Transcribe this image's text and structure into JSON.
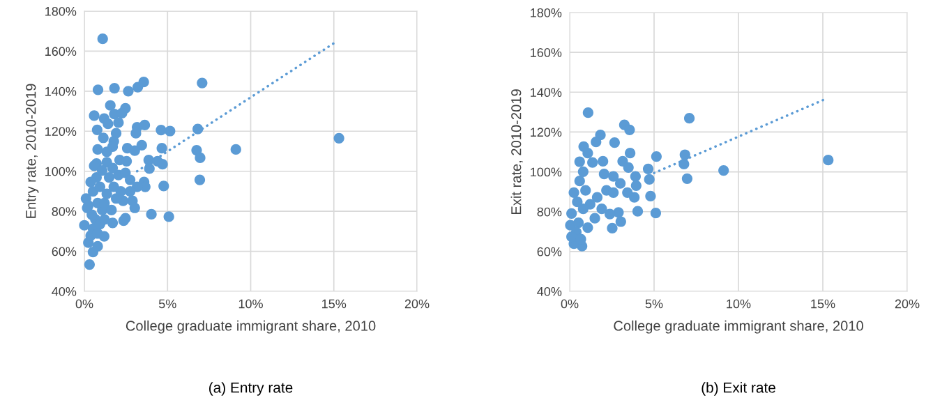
{
  "chart_data": [
    {
      "type": "scatter",
      "title": "(a) Entry rate",
      "xlabel": "College graduate immigrant share, 2010",
      "ylabel": "Entry rate, 2010-2019",
      "grid": true,
      "legend": false,
      "marker": "circle",
      "xlim": [
        0,
        20
      ],
      "ylim": [
        40,
        180
      ],
      "xticks": [
        {
          "value": 0,
          "label": "0%"
        },
        {
          "value": 5,
          "label": "5%"
        },
        {
          "value": 10,
          "label": "10%"
        },
        {
          "value": 15,
          "label": "15%"
        },
        {
          "value": 20,
          "label": "20%"
        }
      ],
      "yticks": [
        {
          "value": 40,
          "label": "40%"
        },
        {
          "value": 60,
          "label": "60%"
        },
        {
          "value": 80,
          "label": "80%"
        },
        {
          "value": 100,
          "label": "100%"
        },
        {
          "value": 120,
          "label": "120%"
        },
        {
          "value": 140,
          "label": "140%"
        },
        {
          "value": 160,
          "label": "160%"
        },
        {
          "value": 180,
          "label": "180%"
        }
      ],
      "series": [
        {
          "color": "#5b9bd5",
          "x": [
            1.1,
            7.08,
            0.82,
            1.81,
            2.64,
            3.21,
            3.57,
            1.56,
            2.47,
            0.59,
            1.19,
            1.8,
            2.26,
            1.42,
            2.05,
            0.77,
            3.17,
            3.63,
            3.1,
            4.61,
            5.15,
            6.82,
            15.31,
            1.91,
            1.14,
            1.77,
            1.7,
            0.8,
            1.35,
            2.58,
            3.45,
            3.03,
            4.66,
            6.75,
            9.11,
            6.96,
            3.87,
            4.4,
            4.7,
            3.91,
            2.12,
            2.54,
            0.73,
            1.35,
            6.94,
            4.77,
            3.59,
            3.66,
            2.89,
            3.03,
            2.33,
            4.03,
            5.08,
            2.47,
            2.36,
            1.7,
            1.19,
            0.8,
            0.52,
            0.31,
            0.1,
            0.17,
            0.0,
            0.24,
            0.38,
            0.52,
            0.66,
            0.45,
            0.94,
            1.08,
            0.8,
            0.52,
            0.94,
            1.35,
            1.77,
            1.49,
            2.05,
            2.47,
            2.75,
            1.91,
            1.63,
            1.21,
            0.73,
            0.59,
            1.07,
            1.7,
            0.38,
            0.24,
            1.21,
            0.8,
            2.19,
            3.17,
            2.75
          ],
          "values": [
            166.2,
            144.1,
            140.7,
            141.5,
            140.0,
            142.0,
            144.6,
            132.9,
            131.5,
            127.8,
            126.3,
            128.6,
            129.0,
            123.7,
            124.3,
            120.7,
            122.0,
            123.1,
            119.0,
            120.6,
            120.1,
            121.1,
            116.5,
            119.0,
            116.7,
            115.0,
            112.3,
            110.9,
            109.7,
            111.5,
            113.0,
            110.3,
            111.5,
            110.5,
            110.9,
            106.7,
            105.6,
            105.0,
            103.5,
            101.3,
            105.6,
            105.0,
            103.9,
            104.5,
            95.7,
            92.6,
            94.6,
            92.2,
            85.2,
            81.7,
            85.2,
            78.5,
            77.3,
            76.5,
            75.3,
            74.2,
            67.5,
            62.5,
            59.6,
            53.4,
            86.4,
            81.7,
            73.0,
            64.3,
            67.8,
            71.3,
            76.0,
            78.3,
            73.6,
            80.6,
            84.1,
            89.9,
            92.2,
            88.7,
            92.2,
            96.9,
            98.1,
            99.2,
            95.7,
            86.4,
            80.6,
            84.1,
            96.9,
            102.7,
            100.4,
            101.6,
            94.6,
            82.9,
            75.9,
            68.9,
            89.9,
            92.2,
            89.9
          ]
        },
        {
          "type": "line",
          "color": "#5b9bd5",
          "line_style": "dotted",
          "marker": "none",
          "x": [
            3.17,
            15.1
          ],
          "values": [
            100.0,
            164.5
          ]
        }
      ]
    },
    {
      "type": "scatter",
      "title": "(b) Exit rate",
      "xlabel": "College graduate immigrant share, 2010",
      "ylabel": "Exit rate, 2010-2019",
      "grid": true,
      "legend": false,
      "marker": "circle",
      "xlim": [
        0,
        20
      ],
      "ylim": [
        40,
        180
      ],
      "xticks": [
        {
          "value": 0,
          "label": "0%"
        },
        {
          "value": 5,
          "label": "5%"
        },
        {
          "value": 10,
          "label": "10%"
        },
        {
          "value": 15,
          "label": "15%"
        },
        {
          "value": 20,
          "label": "20%"
        }
      ],
      "yticks": [
        {
          "value": 40,
          "label": "40%"
        },
        {
          "value": 60,
          "label": "60%"
        },
        {
          "value": 80,
          "label": "80%"
        },
        {
          "value": 100,
          "label": "100%"
        },
        {
          "value": 120,
          "label": "120%"
        },
        {
          "value": 140,
          "label": "140%"
        },
        {
          "value": 160,
          "label": "160%"
        },
        {
          "value": 180,
          "label": "180%"
        }
      ],
      "series": [
        {
          "color": "#5b9bd5",
          "x": [
            1.09,
            7.09,
            15.32,
            9.12,
            3.24,
            3.55,
            1.82,
            1.56,
            2.66,
            0.83,
            3.58,
            5.14,
            6.83,
            6.77,
            6.96,
            3.14,
            3.48,
            1.97,
            0.59,
            4.65,
            4.72,
            3.9,
            3.94,
            4.79,
            3.83,
            4.03,
            5.1,
            2.89,
            2.38,
            3.03,
            2.52,
            0.73,
            0.25,
            0.04,
            0.11,
            0.25,
            0.59,
            0.8,
            1.07,
            1.35,
            2.04,
            2.59,
            3.0,
            2.18,
            1.63,
            1.21,
            0.8,
            0.52,
            0.39,
            1.07,
            1.49,
            1.9,
            2.59,
            3.42,
            0.94,
            0.45,
            0.11,
            0.66
          ],
          "values": [
            129.7,
            126.9,
            105.9,
            100.7,
            123.6,
            121.1,
            118.5,
            115.0,
            114.7,
            112.7,
            109.4,
            107.7,
            108.6,
            103.9,
            96.6,
            105.3,
            102.2,
            105.3,
            105.1,
            101.5,
            96.2,
            97.7,
            93.1,
            87.8,
            87.2,
            80.2,
            79.3,
            79.6,
            78.8,
            75.0,
            71.7,
            62.7,
            63.9,
            73.2,
            79.1,
            89.6,
            95.4,
            100.1,
            109.4,
            104.7,
            98.9,
            97.7,
            94.2,
            90.7,
            87.2,
            83.7,
            81.4,
            74.4,
            69.7,
            72.0,
            76.7,
            81.4,
            89.6,
            89.6,
            90.7,
            84.9,
            67.4,
            66.2
          ]
        },
        {
          "type": "line",
          "color": "#5b9bd5",
          "line_style": "dotted",
          "marker": "none",
          "x": [
            5.0,
            15.06
          ],
          "values": [
            99.4,
            136.2
          ]
        }
      ]
    }
  ]
}
